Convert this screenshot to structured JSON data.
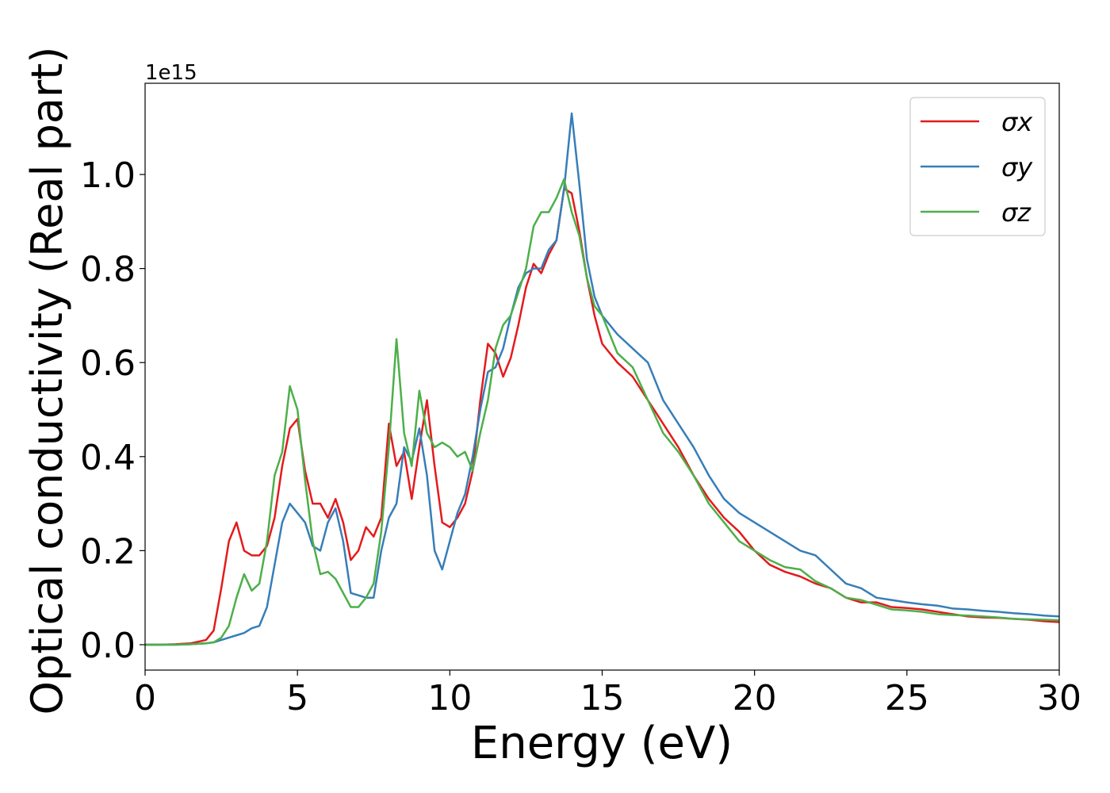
{
  "chart_data": {
    "type": "line",
    "xlabel": "Energy (eV)",
    "ylabel": "Optical conductivity (Real part)",
    "y_offset_label": "1e15",
    "x": [
      0,
      0.5,
      1,
      1.5,
      2,
      2.25,
      2.5,
      2.75,
      3,
      3.25,
      3.5,
      3.75,
      4,
      4.25,
      4.5,
      4.75,
      5,
      5.25,
      5.5,
      5.75,
      6,
      6.25,
      6.5,
      6.75,
      7,
      7.25,
      7.5,
      7.75,
      8,
      8.25,
      8.5,
      8.75,
      9,
      9.25,
      9.5,
      9.75,
      10,
      10.25,
      10.5,
      10.75,
      11,
      11.25,
      11.5,
      11.75,
      12,
      12.25,
      12.5,
      12.75,
      13,
      13.25,
      13.5,
      13.75,
      14,
      14.25,
      14.5,
      14.75,
      15,
      15.5,
      16,
      16.5,
      17,
      17.5,
      18,
      18.5,
      19,
      19.5,
      20,
      20.5,
      21,
      21.5,
      22,
      22.5,
      23,
      23.5,
      24,
      24.5,
      25,
      25.5,
      26,
      26.5,
      27,
      27.5,
      28,
      28.5,
      29,
      29.5,
      30
    ],
    "series": [
      {
        "name": "σx",
        "color": "#e41a1c",
        "values": [
          0,
          0,
          0.001,
          0.003,
          0.01,
          0.03,
          0.12,
          0.22,
          0.26,
          0.2,
          0.19,
          0.19,
          0.21,
          0.27,
          0.38,
          0.46,
          0.48,
          0.37,
          0.3,
          0.3,
          0.27,
          0.31,
          0.26,
          0.18,
          0.2,
          0.25,
          0.23,
          0.27,
          0.47,
          0.38,
          0.41,
          0.31,
          0.42,
          0.52,
          0.38,
          0.26,
          0.25,
          0.27,
          0.3,
          0.37,
          0.52,
          0.64,
          0.62,
          0.57,
          0.61,
          0.68,
          0.76,
          0.81,
          0.79,
          0.83,
          0.86,
          0.97,
          0.96,
          0.88,
          0.78,
          0.7,
          0.64,
          0.6,
          0.57,
          0.52,
          0.47,
          0.42,
          0.36,
          0.31,
          0.27,
          0.24,
          0.2,
          0.17,
          0.155,
          0.145,
          0.13,
          0.12,
          0.1,
          0.09,
          0.09,
          0.08,
          0.078,
          0.075,
          0.07,
          0.065,
          0.06,
          0.058,
          0.057,
          0.055,
          0.053,
          0.05,
          0.048
        ]
      },
      {
        "name": "σy",
        "color": "#377eb8",
        "values": [
          0,
          0,
          0,
          0.001,
          0.003,
          0.005,
          0.01,
          0.015,
          0.02,
          0.025,
          0.035,
          0.04,
          0.08,
          0.17,
          0.26,
          0.3,
          0.28,
          0.26,
          0.21,
          0.2,
          0.26,
          0.29,
          0.22,
          0.11,
          0.105,
          0.1,
          0.1,
          0.2,
          0.27,
          0.3,
          0.42,
          0.39,
          0.46,
          0.36,
          0.2,
          0.16,
          0.22,
          0.28,
          0.32,
          0.4,
          0.5,
          0.58,
          0.59,
          0.63,
          0.7,
          0.76,
          0.79,
          0.8,
          0.8,
          0.84,
          0.86,
          0.97,
          1.13,
          0.98,
          0.82,
          0.74,
          0.7,
          0.66,
          0.63,
          0.6,
          0.52,
          0.47,
          0.42,
          0.36,
          0.31,
          0.28,
          0.26,
          0.24,
          0.22,
          0.2,
          0.19,
          0.16,
          0.13,
          0.12,
          0.1,
          0.095,
          0.09,
          0.086,
          0.083,
          0.077,
          0.075,
          0.072,
          0.07,
          0.067,
          0.065,
          0.062,
          0.06
        ]
      },
      {
        "name": "σz",
        "color": "#4daf4a",
        "values": [
          0,
          0,
          0,
          0.001,
          0.003,
          0.005,
          0.015,
          0.04,
          0.1,
          0.15,
          0.115,
          0.13,
          0.22,
          0.36,
          0.41,
          0.55,
          0.5,
          0.35,
          0.22,
          0.15,
          0.155,
          0.14,
          0.11,
          0.08,
          0.08,
          0.1,
          0.13,
          0.24,
          0.42,
          0.65,
          0.45,
          0.38,
          0.54,
          0.45,
          0.42,
          0.43,
          0.42,
          0.4,
          0.41,
          0.37,
          0.45,
          0.52,
          0.63,
          0.68,
          0.7,
          0.75,
          0.8,
          0.89,
          0.92,
          0.92,
          0.95,
          0.99,
          0.92,
          0.87,
          0.78,
          0.72,
          0.7,
          0.62,
          0.59,
          0.52,
          0.45,
          0.41,
          0.36,
          0.3,
          0.26,
          0.22,
          0.2,
          0.18,
          0.165,
          0.16,
          0.135,
          0.12,
          0.1,
          0.095,
          0.085,
          0.075,
          0.073,
          0.07,
          0.065,
          0.063,
          0.062,
          0.06,
          0.058,
          0.055,
          0.054,
          0.053,
          0.052
        ]
      }
    ],
    "xlim": [
      0,
      30
    ],
    "xticks": [
      0,
      5,
      10,
      15,
      20,
      25,
      30
    ],
    "ylim": [
      -0.054,
      1.194
    ],
    "yticks": [
      {
        "value": 0,
        "label": "0.0"
      },
      0.2,
      0.4,
      0.6,
      0.8,
      {
        "value": 1,
        "label": "1.0"
      }
    ],
    "legend": "upper right",
    "grid": false
  }
}
